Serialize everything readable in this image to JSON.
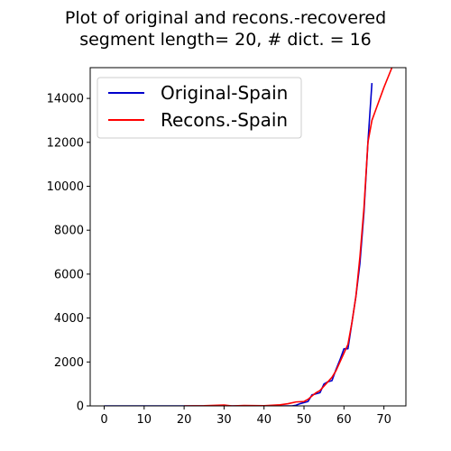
{
  "chart_data": {
    "type": "line",
    "title_lines": [
      "Plot of original and recons.-recovered",
      "segment length= 20, # dict. = 16"
    ],
    "xlabel": "",
    "ylabel": "",
    "xlim": [
      -3.5,
      75.5
    ],
    "ylim": [
      0,
      15400
    ],
    "x_ticks": [
      0,
      10,
      20,
      30,
      40,
      50,
      60,
      70
    ],
    "y_ticks": [
      0,
      2000,
      4000,
      6000,
      8000,
      10000,
      12000,
      14000
    ],
    "grid": false,
    "legend_position": "top-left",
    "series": [
      {
        "name": "Original-Spain",
        "color": "#0000cc",
        "points": [
          [
            0,
            0
          ],
          [
            10,
            0
          ],
          [
            20,
            0
          ],
          [
            30,
            0
          ],
          [
            40,
            0
          ],
          [
            45,
            0
          ],
          [
            47,
            0
          ],
          [
            48,
            30
          ],
          [
            49,
            100
          ],
          [
            50,
            150
          ],
          [
            51,
            200
          ],
          [
            52,
            500
          ],
          [
            53,
            550
          ],
          [
            54,
            600
          ],
          [
            55,
            1000
          ],
          [
            56,
            1100
          ],
          [
            57,
            1150
          ],
          [
            58,
            1650
          ],
          [
            59,
            2100
          ],
          [
            60,
            2600
          ],
          [
            61,
            2600
          ],
          [
            62,
            3800
          ],
          [
            63,
            5000
          ],
          [
            64,
            6500
          ],
          [
            65,
            8800
          ],
          [
            66,
            12000
          ],
          [
            67,
            14700
          ]
        ]
      },
      {
        "name": "Recons.-Spain",
        "color": "#ff0000",
        "points": [
          [
            20,
            0
          ],
          [
            25,
            10
          ],
          [
            30,
            40
          ],
          [
            32,
            0
          ],
          [
            35,
            20
          ],
          [
            40,
            10
          ],
          [
            44,
            50
          ],
          [
            46,
            100
          ],
          [
            48,
            180
          ],
          [
            50,
            200
          ],
          [
            51,
            300
          ],
          [
            52,
            450
          ],
          [
            53,
            600
          ],
          [
            54,
            700
          ],
          [
            55,
            900
          ],
          [
            56,
            1100
          ],
          [
            57,
            1300
          ],
          [
            58,
            1600
          ],
          [
            59,
            2000
          ],
          [
            60,
            2400
          ],
          [
            61,
            2800
          ],
          [
            62,
            3800
          ],
          [
            63,
            5000
          ],
          [
            64,
            6800
          ],
          [
            65,
            9000
          ],
          [
            66,
            12000
          ],
          [
            67,
            13000
          ],
          [
            68,
            13500
          ],
          [
            70,
            14500
          ],
          [
            72,
            15400
          ]
        ]
      }
    ]
  }
}
